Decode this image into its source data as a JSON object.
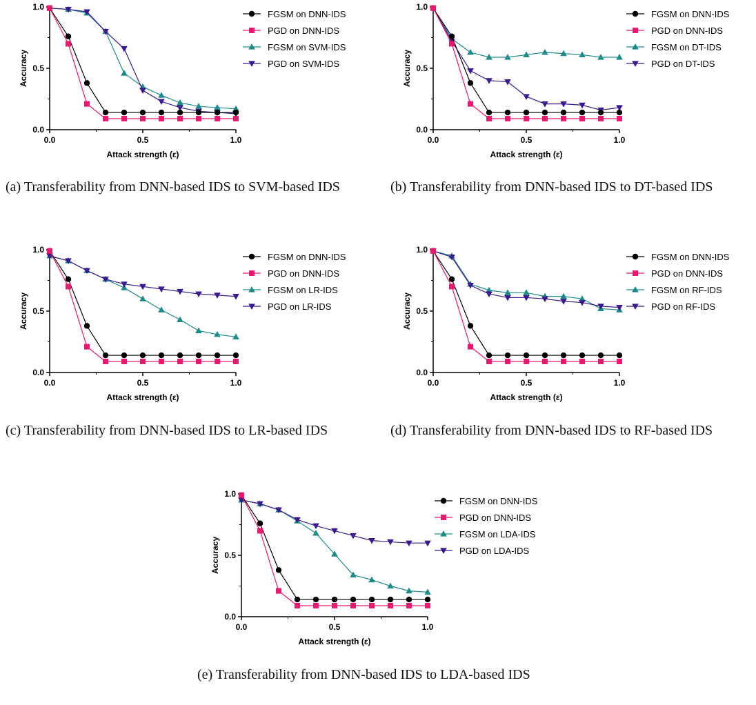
{
  "colors": {
    "fgsm_dnn": "#000000",
    "pgd_dnn": "#e8196e",
    "fgsm_target": "#1f8a8a",
    "pgd_target": "#3a1a8c"
  },
  "chart_data": [
    {
      "type": "line",
      "caption": "(a) Transferability from DNN-based IDS to SVM-based IDS",
      "xlabel": "Attack strength (ε)",
      "ylabel": "Accuracy",
      "xlim": [
        0,
        1.0
      ],
      "ylim": [
        0,
        1.0
      ],
      "xticks": [
        "0.0",
        "0.5",
        "1.0"
      ],
      "yticks": [
        "0.0",
        "0.5",
        "1.0"
      ],
      "legend_position": "top-right",
      "x": [
        0.0,
        0.1,
        0.2,
        0.3,
        0.4,
        0.5,
        0.6,
        0.7,
        0.8,
        0.9,
        1.0
      ],
      "series": [
        {
          "name": "FGSM on DNN-IDS",
          "marker": "circle",
          "color_key": "fgsm_dnn",
          "values": [
            0.99,
            0.76,
            0.38,
            0.14,
            0.14,
            0.14,
            0.14,
            0.14,
            0.14,
            0.14,
            0.14
          ]
        },
        {
          "name": "PGD on DNN-IDS",
          "marker": "square",
          "color_key": "pgd_dnn",
          "values": [
            0.99,
            0.7,
            0.21,
            0.09,
            0.09,
            0.09,
            0.09,
            0.09,
            0.09,
            0.09,
            0.09
          ]
        },
        {
          "name": "FGSM on SVM-IDS",
          "marker": "triangle-up",
          "color_key": "fgsm_target",
          "values": [
            0.99,
            0.98,
            0.95,
            0.8,
            0.46,
            0.35,
            0.28,
            0.22,
            0.19,
            0.18,
            0.17
          ]
        },
        {
          "name": "PGD on SVM-IDS",
          "marker": "triangle-down",
          "color_key": "pgd_target",
          "values": [
            0.99,
            0.98,
            0.96,
            0.8,
            0.66,
            0.32,
            0.23,
            0.18,
            0.15,
            0.14,
            0.13
          ]
        }
      ]
    },
    {
      "type": "line",
      "caption": "(b) Transferability from DNN-based IDS to DT-based IDS",
      "xlabel": "Attack strength (ε)",
      "ylabel": "Accuracy",
      "xlim": [
        0,
        1.0
      ],
      "ylim": [
        0,
        1.0
      ],
      "xticks": [
        "0.0",
        "0.5",
        "1.0"
      ],
      "yticks": [
        "0.0",
        "0.5",
        "1.0"
      ],
      "legend_position": "top-right",
      "x": [
        0.0,
        0.1,
        0.2,
        0.3,
        0.4,
        0.5,
        0.6,
        0.7,
        0.8,
        0.9,
        1.0
      ],
      "series": [
        {
          "name": "FGSM on DNN-IDS",
          "marker": "circle",
          "color_key": "fgsm_dnn",
          "values": [
            0.99,
            0.76,
            0.38,
            0.14,
            0.14,
            0.14,
            0.14,
            0.14,
            0.14,
            0.14,
            0.14
          ]
        },
        {
          "name": "PGD on DNN-IDS",
          "marker": "square",
          "color_key": "pgd_dnn",
          "values": [
            0.99,
            0.7,
            0.21,
            0.09,
            0.09,
            0.09,
            0.09,
            0.09,
            0.09,
            0.09,
            0.09
          ]
        },
        {
          "name": "FGSM on DT-IDS",
          "marker": "triangle-up",
          "color_key": "fgsm_target",
          "values": [
            0.99,
            0.74,
            0.63,
            0.59,
            0.59,
            0.61,
            0.63,
            0.62,
            0.61,
            0.59,
            0.59
          ]
        },
        {
          "name": "PGD on DT-IDS",
          "marker": "triangle-down",
          "color_key": "pgd_target",
          "values": [
            0.99,
            0.72,
            0.48,
            0.4,
            0.39,
            0.27,
            0.21,
            0.21,
            0.2,
            0.16,
            0.18
          ]
        }
      ]
    },
    {
      "type": "line",
      "caption": "(c) Transferability from DNN-based IDS to LR-based IDS",
      "xlabel": "Attack strength (ε)",
      "ylabel": "Accuracy",
      "xlim": [
        0,
        1.0
      ],
      "ylim": [
        0,
        1.0
      ],
      "xticks": [
        "0.0",
        "0.5",
        "1.0"
      ],
      "yticks": [
        "0.0",
        "0.5",
        "1.0"
      ],
      "legend_position": "top-right",
      "x": [
        0.0,
        0.1,
        0.2,
        0.3,
        0.4,
        0.5,
        0.6,
        0.7,
        0.8,
        0.9,
        1.0
      ],
      "series": [
        {
          "name": "FGSM on DNN-IDS",
          "marker": "circle",
          "color_key": "fgsm_dnn",
          "values": [
            0.99,
            0.76,
            0.38,
            0.14,
            0.14,
            0.14,
            0.14,
            0.14,
            0.14,
            0.14,
            0.14
          ]
        },
        {
          "name": "PGD on DNN-IDS",
          "marker": "square",
          "color_key": "pgd_dnn",
          "values": [
            0.99,
            0.7,
            0.21,
            0.09,
            0.09,
            0.09,
            0.09,
            0.09,
            0.09,
            0.09,
            0.09
          ]
        },
        {
          "name": "FGSM on LR-IDS",
          "marker": "triangle-up",
          "color_key": "fgsm_target",
          "values": [
            0.95,
            0.91,
            0.83,
            0.76,
            0.69,
            0.6,
            0.51,
            0.43,
            0.34,
            0.31,
            0.29
          ]
        },
        {
          "name": "PGD on LR-IDS",
          "marker": "triangle-down",
          "color_key": "pgd_target",
          "values": [
            0.95,
            0.91,
            0.83,
            0.76,
            0.72,
            0.7,
            0.68,
            0.66,
            0.64,
            0.63,
            0.62
          ]
        }
      ]
    },
    {
      "type": "line",
      "caption": "(d) Transferability from DNN-based IDS to RF-based IDS",
      "xlabel": "Attack strength (ε)",
      "ylabel": "Accuracy",
      "xlim": [
        0,
        1.0
      ],
      "ylim": [
        0,
        1.0
      ],
      "xticks": [
        "0.0",
        "0.5",
        "1.0"
      ],
      "yticks": [
        "0.0",
        "0.5",
        "1.0"
      ],
      "legend_position": "top-right",
      "x": [
        0.0,
        0.1,
        0.2,
        0.3,
        0.4,
        0.5,
        0.6,
        0.7,
        0.8,
        0.9,
        1.0
      ],
      "series": [
        {
          "name": "FGSM on DNN-IDS",
          "marker": "circle",
          "color_key": "fgsm_dnn",
          "values": [
            0.99,
            0.76,
            0.38,
            0.14,
            0.14,
            0.14,
            0.14,
            0.14,
            0.14,
            0.14,
            0.14
          ]
        },
        {
          "name": "PGD on DNN-IDS",
          "marker": "square",
          "color_key": "pgd_dnn",
          "values": [
            0.99,
            0.7,
            0.21,
            0.09,
            0.09,
            0.09,
            0.09,
            0.09,
            0.09,
            0.09,
            0.09
          ]
        },
        {
          "name": "FGSM on RF-IDS",
          "marker": "triangle-up",
          "color_key": "fgsm_target",
          "values": [
            0.99,
            0.95,
            0.72,
            0.67,
            0.65,
            0.65,
            0.62,
            0.62,
            0.6,
            0.52,
            0.51
          ]
        },
        {
          "name": "PGD on RF-IDS",
          "marker": "triangle-down",
          "color_key": "pgd_target",
          "values": [
            0.99,
            0.94,
            0.71,
            0.64,
            0.61,
            0.61,
            0.6,
            0.58,
            0.57,
            0.54,
            0.53
          ]
        }
      ]
    },
    {
      "type": "line",
      "caption": "(e) Transferability from DNN-based IDS to LDA-based IDS",
      "xlabel": "Attack strength (ε)",
      "ylabel": "Accuracy",
      "xlim": [
        0,
        1.0
      ],
      "ylim": [
        0,
        1.0
      ],
      "xticks": [
        "0.0",
        "0.5",
        "1.0"
      ],
      "yticks": [
        "0.0",
        "0.5",
        "1.0"
      ],
      "legend_position": "top-right",
      "x": [
        0.0,
        0.1,
        0.2,
        0.3,
        0.4,
        0.5,
        0.6,
        0.7,
        0.8,
        0.9,
        1.0
      ],
      "series": [
        {
          "name": "FGSM on DNN-IDS",
          "marker": "circle",
          "color_key": "fgsm_dnn",
          "values": [
            0.99,
            0.76,
            0.38,
            0.14,
            0.14,
            0.14,
            0.14,
            0.14,
            0.14,
            0.14,
            0.14
          ]
        },
        {
          "name": "PGD on DNN-IDS",
          "marker": "square",
          "color_key": "pgd_dnn",
          "values": [
            0.99,
            0.7,
            0.21,
            0.09,
            0.09,
            0.09,
            0.09,
            0.09,
            0.09,
            0.09,
            0.09
          ]
        },
        {
          "name": "FGSM on LDA-IDS",
          "marker": "triangle-up",
          "color_key": "fgsm_target",
          "values": [
            0.95,
            0.92,
            0.87,
            0.78,
            0.68,
            0.51,
            0.34,
            0.3,
            0.25,
            0.21,
            0.2
          ]
        },
        {
          "name": "PGD on LDA-IDS",
          "marker": "triangle-down",
          "color_key": "pgd_target",
          "values": [
            0.95,
            0.92,
            0.87,
            0.79,
            0.74,
            0.7,
            0.66,
            0.62,
            0.61,
            0.6,
            0.6
          ]
        }
      ]
    }
  ]
}
